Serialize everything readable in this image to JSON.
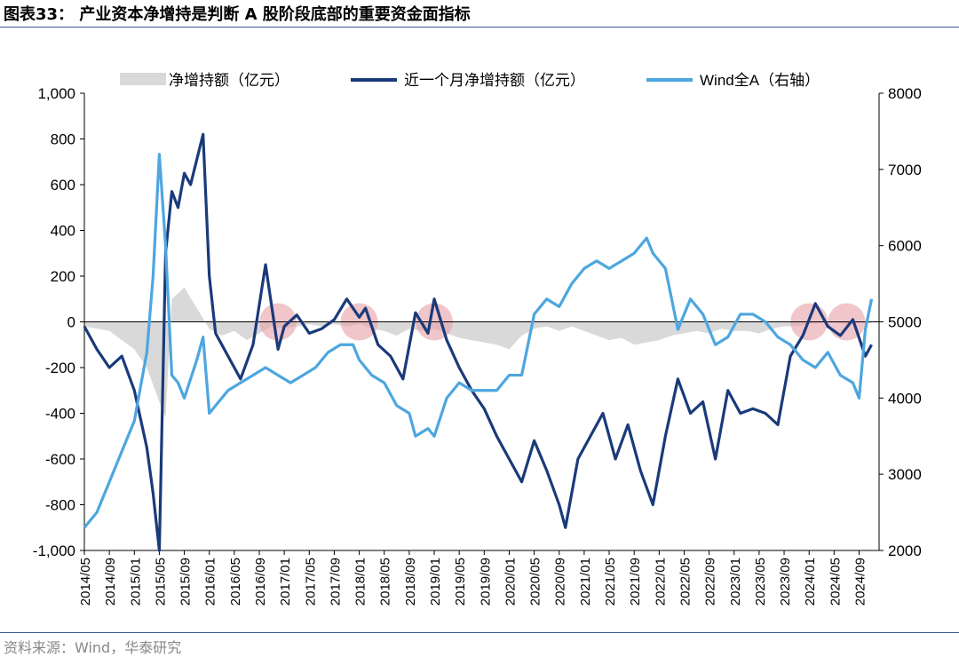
{
  "page": {
    "title": "图表33：  产业资本净增持是判断 A 股阶段底部的重要资金面指标",
    "source": "资料来源：Wind，华泰研究"
  },
  "colors": {
    "area": "#d9d9d9",
    "monthly_line": "#1a3a7a",
    "wind_line": "#4da6e0",
    "highlight": "#e8a0a8",
    "accent_rule": "#3b5998"
  },
  "chart_data": {
    "type": "line",
    "title": "",
    "xlabel": "",
    "ylabel": "",
    "ylim": [
      -1000,
      1000
    ],
    "y2lim": [
      2000,
      8000
    ],
    "y_ticks": [
      "1,000",
      "800",
      "600",
      "400",
      "200",
      "0",
      "-200",
      "-400",
      "-600",
      "-800",
      "-1,000"
    ],
    "y2_ticks": [
      "8000",
      "7000",
      "6000",
      "5000",
      "4000",
      "3000",
      "2000"
    ],
    "x_ticks": [
      "2014/05",
      "2014/09",
      "2015/01",
      "2015/05",
      "2015/09",
      "2016/01",
      "2016/05",
      "2016/09",
      "2017/01",
      "2017/05",
      "2017/09",
      "2018/01",
      "2018/05",
      "2018/09",
      "2019/01",
      "2019/05",
      "2019/09",
      "2020/01",
      "2020/05",
      "2020/09",
      "2021/01",
      "2021/05",
      "2021/09",
      "2022/01",
      "2022/05",
      "2022/09",
      "2023/01",
      "2023/05",
      "2023/09",
      "2024/01",
      "2024/05",
      "2024/09"
    ],
    "grid": false,
    "legend_position": "top",
    "series": [
      {
        "name": "净增持额（亿元）",
        "type": "area",
        "axis": "left",
        "x": [
          "2014/05",
          "2014/09",
          "2015/01",
          "2015/03",
          "2015/05",
          "2015/06",
          "2015/07",
          "2015/09",
          "2015/11",
          "2016/01",
          "2016/03",
          "2016/05",
          "2016/07",
          "2016/09",
          "2016/11",
          "2017/01",
          "2017/03",
          "2017/05",
          "2017/07",
          "2017/09",
          "2017/11",
          "2018/01",
          "2018/03",
          "2018/05",
          "2018/07",
          "2018/09",
          "2018/11",
          "2019/01",
          "2019/03",
          "2019/05",
          "2019/07",
          "2019/09",
          "2019/11",
          "2020/01",
          "2020/03",
          "2020/05",
          "2020/07",
          "2020/09",
          "2020/11",
          "2021/01",
          "2021/03",
          "2021/05",
          "2021/07",
          "2021/09",
          "2021/11",
          "2022/01",
          "2022/03",
          "2022/05",
          "2022/07",
          "2022/09",
          "2022/11",
          "2023/01",
          "2023/03",
          "2023/05",
          "2023/07",
          "2023/09",
          "2023/11",
          "2024/01",
          "2024/03",
          "2024/05",
          "2024/07",
          "2024/09",
          "2024/11"
        ],
        "values": [
          -20,
          -40,
          -120,
          -200,
          -350,
          -420,
          100,
          150,
          60,
          -30,
          -60,
          -40,
          -80,
          -50,
          -20,
          -30,
          -20,
          -10,
          -20,
          -10,
          -20,
          -10,
          -30,
          -40,
          -60,
          -30,
          -40,
          -30,
          -50,
          -70,
          -80,
          -90,
          -100,
          -120,
          -60,
          -30,
          -20,
          -40,
          -20,
          -40,
          -60,
          -80,
          -70,
          -100,
          -90,
          -80,
          -60,
          -50,
          -40,
          -50,
          -30,
          -40,
          -40,
          -50,
          -30,
          -20,
          -20,
          -10,
          -5,
          -5,
          -10,
          -5,
          -5
        ]
      },
      {
        "name": "近一个月净增持额（亿元）",
        "type": "line",
        "axis": "left",
        "x": [
          "2014/05",
          "2014/07",
          "2014/09",
          "2014/11",
          "2015/01",
          "2015/03",
          "2015/04",
          "2015/05",
          "2015/06",
          "2015/07",
          "2015/08",
          "2015/09",
          "2015/10",
          "2015/12",
          "2016/01",
          "2016/02",
          "2016/04",
          "2016/06",
          "2016/08",
          "2016/10",
          "2016/12",
          "2017/01",
          "2017/03",
          "2017/05",
          "2017/07",
          "2017/09",
          "2017/11",
          "2018/01",
          "2018/02",
          "2018/04",
          "2018/06",
          "2018/08",
          "2018/10",
          "2018/12",
          "2019/01",
          "2019/03",
          "2019/05",
          "2019/07",
          "2019/09",
          "2019/11",
          "2020/01",
          "2020/03",
          "2020/05",
          "2020/07",
          "2020/09",
          "2020/10",
          "2020/12",
          "2021/02",
          "2021/04",
          "2021/06",
          "2021/08",
          "2021/10",
          "2021/12",
          "2022/02",
          "2022/04",
          "2022/06",
          "2022/08",
          "2022/10",
          "2022/12",
          "2023/02",
          "2023/04",
          "2023/06",
          "2023/08",
          "2023/10",
          "2023/12",
          "2024/02",
          "2024/04",
          "2024/06",
          "2024/08",
          "2024/10",
          "2024/11"
        ],
        "values": [
          -20,
          -120,
          -200,
          -150,
          -300,
          -550,
          -750,
          -1000,
          300,
          570,
          500,
          650,
          600,
          820,
          200,
          -50,
          -150,
          -250,
          -100,
          250,
          -120,
          -20,
          30,
          -50,
          -30,
          10,
          100,
          20,
          60,
          -100,
          -150,
          -250,
          40,
          -50,
          100,
          -80,
          -200,
          -300,
          -380,
          -500,
          -600,
          -700,
          -520,
          -650,
          -800,
          -900,
          -600,
          -500,
          -400,
          -600,
          -450,
          -650,
          -800,
          -500,
          -250,
          -400,
          -350,
          -600,
          -300,
          -400,
          -380,
          -400,
          -450,
          -150,
          -60,
          80,
          -20,
          -60,
          10,
          -150,
          -100
        ]
      },
      {
        "name": "Wind全A（右轴）",
        "type": "line",
        "axis": "right",
        "x": [
          "2014/05",
          "2014/07",
          "2014/09",
          "2014/11",
          "2015/01",
          "2015/03",
          "2015/04",
          "2015/05",
          "2015/06",
          "2015/07",
          "2015/08",
          "2015/09",
          "2015/11",
          "2015/12",
          "2016/01",
          "2016/02",
          "2016/04",
          "2016/06",
          "2016/08",
          "2016/10",
          "2016/12",
          "2017/02",
          "2017/04",
          "2017/06",
          "2017/08",
          "2017/10",
          "2017/12",
          "2018/01",
          "2018/03",
          "2018/05",
          "2018/07",
          "2018/09",
          "2018/10",
          "2018/12",
          "2019/01",
          "2019/03",
          "2019/05",
          "2019/07",
          "2019/09",
          "2019/11",
          "2020/01",
          "2020/03",
          "2020/05",
          "2020/07",
          "2020/09",
          "2020/11",
          "2021/01",
          "2021/03",
          "2021/05",
          "2021/07",
          "2021/09",
          "2021/11",
          "2021/12",
          "2022/02",
          "2022/04",
          "2022/06",
          "2022/08",
          "2022/10",
          "2022/12",
          "2023/02",
          "2023/04",
          "2023/06",
          "2023/08",
          "2023/10",
          "2023/12",
          "2024/02",
          "2024/04",
          "2024/06",
          "2024/08",
          "2024/09",
          "2024/10",
          "2024/11"
        ],
        "values": [
          2300,
          2500,
          2900,
          3300,
          3700,
          4600,
          5600,
          7200,
          6000,
          4300,
          4200,
          4000,
          4500,
          4800,
          3800,
          3900,
          4100,
          4200,
          4300,
          4400,
          4300,
          4200,
          4300,
          4400,
          4600,
          4700,
          4700,
          4500,
          4300,
          4200,
          3900,
          3800,
          3500,
          3600,
          3500,
          4000,
          4200,
          4100,
          4100,
          4100,
          4300,
          4300,
          5100,
          5300,
          5200,
          5500,
          5700,
          5800,
          5700,
          5800,
          5900,
          6100,
          5900,
          5700,
          4900,
          5300,
          5100,
          4700,
          4800,
          5100,
          5100,
          5000,
          4800,
          4700,
          4500,
          4400,
          4600,
          4300,
          4200,
          4000,
          4900,
          5300
        ]
      }
    ],
    "highlights": [
      "2016/12",
      "2018/01",
      "2019/01",
      "2024/01",
      "2024/07"
    ]
  }
}
